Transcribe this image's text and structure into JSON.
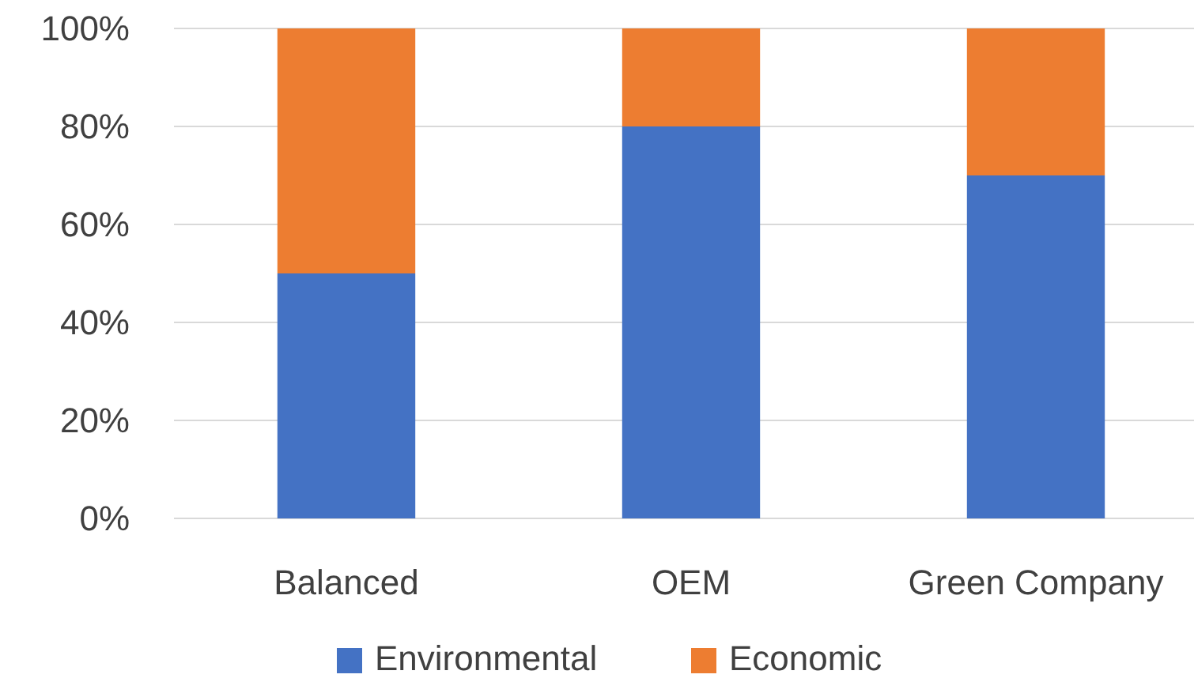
{
  "chart_data": {
    "type": "bar",
    "stacked": true,
    "categories": [
      "Balanced",
      "OEM",
      "Green Company"
    ],
    "series": [
      {
        "name": "Environmental",
        "color": "#4472c4",
        "values": [
          50,
          80,
          70
        ]
      },
      {
        "name": "Economic",
        "color": "#ed7d31",
        "values": [
          50,
          20,
          30
        ]
      }
    ],
    "ylim": [
      0,
      100
    ],
    "yticks": [
      {
        "value": 0,
        "label": "0%"
      },
      {
        "value": 20,
        "label": "20%"
      },
      {
        "value": 40,
        "label": "40%"
      },
      {
        "value": 60,
        "label": "60%"
      },
      {
        "value": 80,
        "label": "80%"
      },
      {
        "value": 100,
        "label": "100%"
      }
    ],
    "grid": "y",
    "legend": "bottom"
  }
}
